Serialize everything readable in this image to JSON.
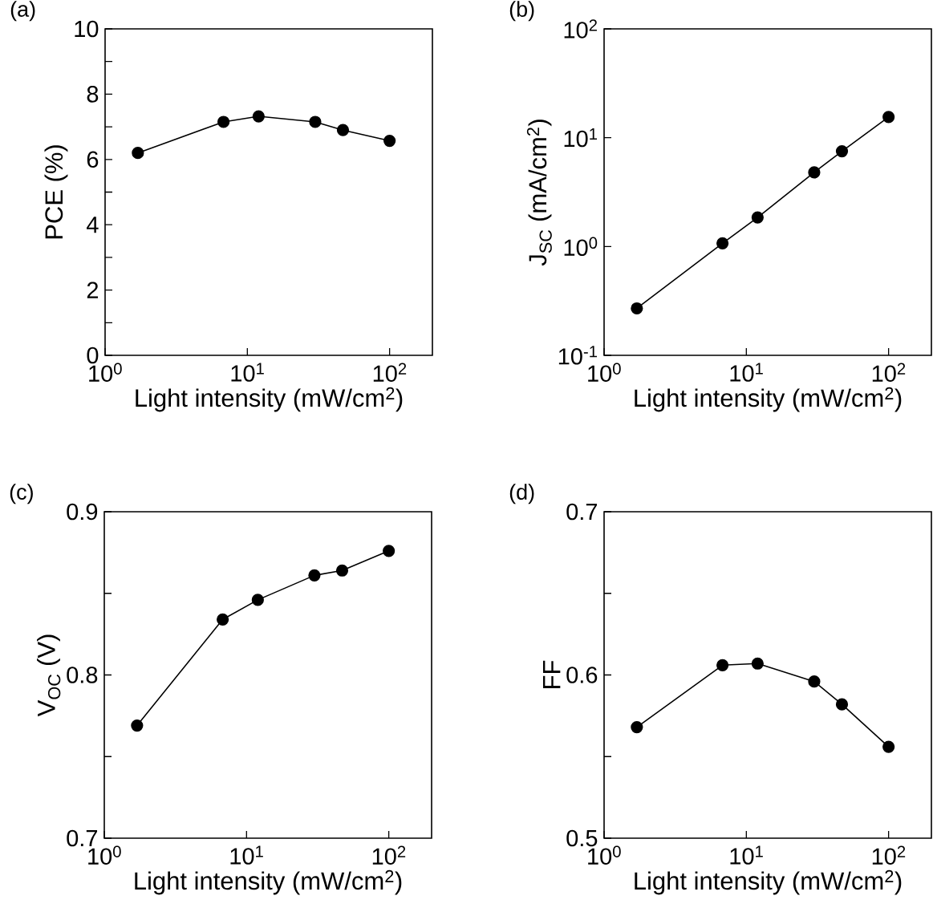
{
  "chart_data": [
    {
      "type": "line",
      "title": "(a)",
      "xlabel": "Light intensity (mW/cm$^{2}$)",
      "ylabel": "PCE (%)",
      "x": [
        1.7,
        6.8,
        12,
        30,
        47,
        100
      ],
      "values": [
        6.2,
        7.15,
        7.32,
        7.15,
        6.9,
        6.57
      ],
      "color": "#000000",
      "marker": "circle",
      "line_style": "solid",
      "log": "x",
      "xlim": [
        1,
        200
      ],
      "ylim": [
        0,
        10
      ],
      "xticks": [
        {
          "value": 1,
          "label": "10$^{0}$"
        },
        {
          "value": 10,
          "label": "10$^{1}$"
        },
        {
          "value": 100,
          "label": "10$^{2}$"
        }
      ],
      "yticks": [
        0,
        {
          "value": 1,
          "label": null
        },
        2,
        {
          "value": 3,
          "label": null
        },
        4,
        {
          "value": 5,
          "label": null
        },
        6,
        {
          "value": 7,
          "label": null
        },
        8,
        {
          "value": 9,
          "label": null
        },
        10
      ]
    },
    {
      "type": "line",
      "title": "(b)",
      "xlabel": "Light intensity (mW/cm$^{2}$)",
      "ylabel": "J$_{SC}$ (mA/cm$^{2}$)",
      "x": [
        1.7,
        6.8,
        12,
        30,
        47,
        100
      ],
      "values": [
        0.27,
        1.07,
        1.85,
        4.8,
        7.5,
        15.5
      ],
      "color": "#000000",
      "marker": "circle",
      "line_style": "solid",
      "log": "xy",
      "xlim": [
        1,
        200
      ],
      "ylim": [
        0.1,
        100
      ],
      "xticks": [
        {
          "value": 1,
          "label": "10$^{0}$"
        },
        {
          "value": 10,
          "label": "10$^{1}$"
        },
        {
          "value": 100,
          "label": "10$^{2}$"
        }
      ],
      "yticks": [
        {
          "value": 0.1,
          "label": "10$^{-1}$"
        },
        {
          "value": 1,
          "label": "10$^{0}$"
        },
        {
          "value": 10,
          "label": "10$^{1}$"
        },
        {
          "value": 100,
          "label": "10$^{2}$"
        }
      ]
    },
    {
      "type": "line",
      "title": "(c)",
      "xlabel": "Light intensity (mW/cm$^{2}$)",
      "ylabel": "V$_{OC}$ (V)",
      "x": [
        1.7,
        6.8,
        12,
        30,
        47,
        100
      ],
      "values": [
        0.769,
        0.834,
        0.846,
        0.861,
        0.864,
        0.876
      ],
      "color": "#000000",
      "marker": "circle",
      "line_style": "solid",
      "log": "x",
      "xlim": [
        1,
        200
      ],
      "ylim": [
        0.7,
        0.9
      ],
      "xticks": [
        {
          "value": 1,
          "label": "10$^{0}$"
        },
        {
          "value": 10,
          "label": "10$^{1}$"
        },
        {
          "value": 100,
          "label": "10$^{2}$"
        }
      ],
      "yticks": [
        0.7,
        {
          "value": 0.75,
          "label": null
        },
        0.8,
        {
          "value": 0.85,
          "label": null
        },
        0.9
      ]
    },
    {
      "type": "line",
      "title": "(d)",
      "xlabel": "Light intensity (mW/cm$^{2}$)",
      "ylabel": "FF",
      "x": [
        1.7,
        6.8,
        12,
        30,
        47,
        100
      ],
      "values": [
        0.568,
        0.606,
        0.607,
        0.596,
        0.582,
        0.556
      ],
      "color": "#000000",
      "marker": "circle",
      "line_style": "solid",
      "log": "x",
      "xlim": [
        1,
        200
      ],
      "ylim": [
        0.5,
        0.7
      ],
      "xticks": [
        {
          "value": 1,
          "label": "10$^{0}$"
        },
        {
          "value": 10,
          "label": "10$^{1}$"
        },
        {
          "value": 100,
          "label": "10$^{2}$"
        }
      ],
      "yticks": [
        0.5,
        {
          "value": 0.55,
          "label": null
        },
        0.6,
        {
          "value": 0.65,
          "label": null
        },
        0.7
      ]
    }
  ]
}
